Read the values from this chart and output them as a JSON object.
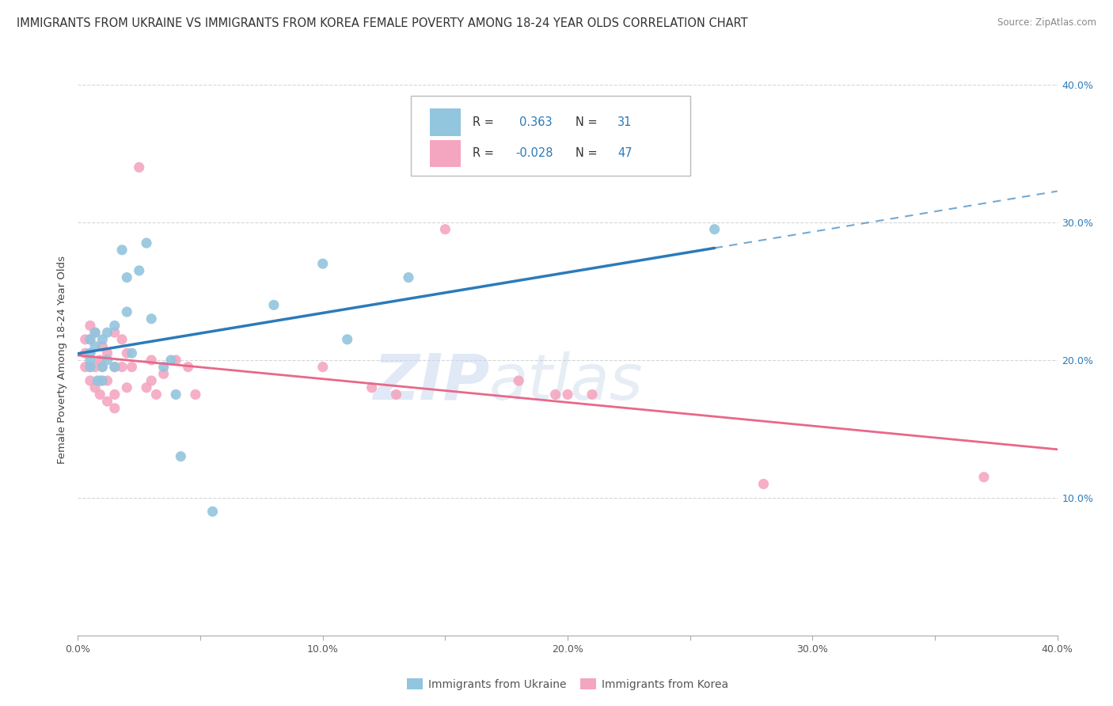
{
  "title": "IMMIGRANTS FROM UKRAINE VS IMMIGRANTS FROM KOREA FEMALE POVERTY AMONG 18-24 YEAR OLDS CORRELATION CHART",
  "source": "Source: ZipAtlas.com",
  "ylabel": "Female Poverty Among 18-24 Year Olds",
  "xlabel_ukraine": "Immigrants from Ukraine",
  "xlabel_korea": "Immigrants from Korea",
  "xlim": [
    0.0,
    0.4
  ],
  "ylim": [
    0.0,
    0.4
  ],
  "xtick_labels": [
    "0.0%",
    "",
    "10.0%",
    "",
    "20.0%",
    "",
    "30.0%",
    "",
    "40.0%"
  ],
  "xtick_values": [
    0.0,
    0.05,
    0.1,
    0.15,
    0.2,
    0.25,
    0.3,
    0.35,
    0.4
  ],
  "ytick_labels": [
    "10.0%",
    "20.0%",
    "30.0%",
    "40.0%"
  ],
  "ytick_values": [
    0.1,
    0.2,
    0.3,
    0.4
  ],
  "ukraine_color": "#92c5de",
  "korea_color": "#f4a6c0",
  "ukraine_line_color": "#2b7bba",
  "korea_line_color": "#e8688a",
  "R_ukraine": 0.363,
  "N_ukraine": 31,
  "R_korea": -0.028,
  "N_korea": 47,
  "watermark_zip": "ZIP",
  "watermark_atlas": "atlas",
  "background_color": "#ffffff",
  "grid_color": "#cccccc",
  "title_fontsize": 10.5,
  "axis_label_fontsize": 9.5,
  "tick_fontsize": 9,
  "ukraine_scatter": [
    [
      0.005,
      0.195
    ],
    [
      0.005,
      0.2
    ],
    [
      0.005,
      0.205
    ],
    [
      0.005,
      0.215
    ],
    [
      0.007,
      0.21
    ],
    [
      0.007,
      0.22
    ],
    [
      0.008,
      0.185
    ],
    [
      0.01,
      0.215
    ],
    [
      0.01,
      0.195
    ],
    [
      0.01,
      0.185
    ],
    [
      0.012,
      0.22
    ],
    [
      0.012,
      0.2
    ],
    [
      0.015,
      0.225
    ],
    [
      0.015,
      0.195
    ],
    [
      0.018,
      0.28
    ],
    [
      0.02,
      0.26
    ],
    [
      0.02,
      0.235
    ],
    [
      0.022,
      0.205
    ],
    [
      0.025,
      0.265
    ],
    [
      0.028,
      0.285
    ],
    [
      0.03,
      0.23
    ],
    [
      0.035,
      0.195
    ],
    [
      0.038,
      0.2
    ],
    [
      0.04,
      0.175
    ],
    [
      0.042,
      0.13
    ],
    [
      0.055,
      0.09
    ],
    [
      0.08,
      0.24
    ],
    [
      0.1,
      0.27
    ],
    [
      0.11,
      0.215
    ],
    [
      0.135,
      0.26
    ],
    [
      0.26,
      0.295
    ]
  ],
  "korea_scatter": [
    [
      0.003,
      0.215
    ],
    [
      0.003,
      0.205
    ],
    [
      0.003,
      0.195
    ],
    [
      0.005,
      0.225
    ],
    [
      0.005,
      0.215
    ],
    [
      0.005,
      0.205
    ],
    [
      0.005,
      0.195
    ],
    [
      0.005,
      0.185
    ],
    [
      0.007,
      0.22
    ],
    [
      0.007,
      0.195
    ],
    [
      0.007,
      0.18
    ],
    [
      0.009,
      0.2
    ],
    [
      0.009,
      0.185
    ],
    [
      0.009,
      0.175
    ],
    [
      0.01,
      0.21
    ],
    [
      0.01,
      0.195
    ],
    [
      0.012,
      0.205
    ],
    [
      0.012,
      0.185
    ],
    [
      0.012,
      0.17
    ],
    [
      0.015,
      0.22
    ],
    [
      0.015,
      0.195
    ],
    [
      0.015,
      0.175
    ],
    [
      0.015,
      0.165
    ],
    [
      0.018,
      0.215
    ],
    [
      0.018,
      0.195
    ],
    [
      0.02,
      0.205
    ],
    [
      0.02,
      0.18
    ],
    [
      0.022,
      0.195
    ],
    [
      0.025,
      0.34
    ],
    [
      0.028,
      0.18
    ],
    [
      0.03,
      0.2
    ],
    [
      0.03,
      0.185
    ],
    [
      0.032,
      0.175
    ],
    [
      0.035,
      0.19
    ],
    [
      0.04,
      0.2
    ],
    [
      0.045,
      0.195
    ],
    [
      0.048,
      0.175
    ],
    [
      0.1,
      0.195
    ],
    [
      0.12,
      0.18
    ],
    [
      0.13,
      0.175
    ],
    [
      0.15,
      0.295
    ],
    [
      0.18,
      0.185
    ],
    [
      0.195,
      0.175
    ],
    [
      0.2,
      0.175
    ],
    [
      0.21,
      0.175
    ],
    [
      0.28,
      0.11
    ],
    [
      0.37,
      0.115
    ]
  ],
  "ukraine_line_x": [
    0.0,
    0.135,
    0.4
  ],
  "ukraine_line_solid_end": 0.135,
  "korea_line_x": [
    0.0,
    0.4
  ]
}
